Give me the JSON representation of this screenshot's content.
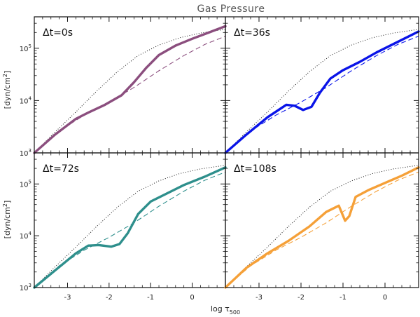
{
  "chart_data": {
    "type": "line",
    "title": "Gas Pressure",
    "xlabel": "log τ",
    "xlabel_sub": "500",
    "ylabel": "[dyn/cm",
    "ylabel_sup": "2",
    "ylabel_end": "]",
    "xlim": [
      -3.8,
      0.8
    ],
    "ylim_log10": [
      3,
      5.6
    ],
    "x_ticks": [
      -3,
      -2,
      -1,
      0
    ],
    "x_tick_labels": [
      "-3",
      "-2",
      "-1",
      "0"
    ],
    "y_ticks_log10": [
      3,
      4,
      5
    ],
    "y_tick_labels": [
      {
        "base": "10",
        "exp": "3"
      },
      {
        "base": "10",
        "exp": "4"
      },
      {
        "base": "10",
        "exp": "5"
      }
    ],
    "reference_series": {
      "dotted": {
        "name": "dotted reference",
        "x": [
          -3.8,
          -3.3,
          -2.8,
          -2.3,
          -1.8,
          -1.3,
          -0.8,
          -0.3,
          0.2,
          0.8
        ],
        "log10_p": [
          3.0,
          3.4,
          3.78,
          4.18,
          4.55,
          4.86,
          5.06,
          5.2,
          5.29,
          5.36
        ]
      },
      "dashed": {
        "name": "dashed reference",
        "x": [
          -3.8,
          -3.2,
          -2.6,
          -2.0,
          -1.4,
          -0.8,
          -0.2,
          0.3,
          0.8
        ],
        "log10_p": [
          3.0,
          3.42,
          3.72,
          3.97,
          4.25,
          4.57,
          4.86,
          5.07,
          5.23
        ]
      }
    },
    "panels": [
      {
        "label": "Δt=0s",
        "color": "#8b4e7e",
        "x": [
          -3.8,
          -3.3,
          -2.8,
          -2.5,
          -2.1,
          -1.7,
          -1.4,
          -1.1,
          -0.8,
          -0.4,
          0.0,
          0.4,
          0.8
        ],
        "log10_p": [
          3.0,
          3.35,
          3.65,
          3.77,
          3.92,
          4.1,
          4.35,
          4.63,
          4.87,
          5.05,
          5.18,
          5.3,
          5.42
        ]
      },
      {
        "label": "Δt=36s",
        "color": "#0a14e8",
        "x": [
          -3.8,
          -3.3,
          -2.8,
          -2.35,
          -2.15,
          -1.95,
          -1.75,
          -1.55,
          -1.3,
          -1.0,
          -0.6,
          -0.2,
          0.3,
          0.8
        ],
        "log10_p": [
          3.0,
          3.35,
          3.68,
          3.92,
          3.9,
          3.82,
          3.88,
          4.15,
          4.42,
          4.58,
          4.74,
          4.92,
          5.12,
          5.32
        ]
      },
      {
        "label": "Δt=72s",
        "color": "#2e8f8c",
        "x": [
          -3.8,
          -3.3,
          -2.8,
          -2.5,
          -2.25,
          -1.95,
          -1.75,
          -1.55,
          -1.3,
          -1.0,
          -0.6,
          -0.2,
          0.3,
          0.8
        ],
        "log10_p": [
          3.0,
          3.33,
          3.66,
          3.81,
          3.82,
          3.79,
          3.84,
          4.05,
          4.42,
          4.66,
          4.82,
          4.98,
          5.14,
          5.32
        ]
      },
      {
        "label": "Δt=108s",
        "color": "#f5a038",
        "x": [
          -3.8,
          -3.3,
          -2.8,
          -2.3,
          -1.8,
          -1.4,
          -1.1,
          -0.95,
          -0.85,
          -0.7,
          -0.4,
          0.0,
          0.4,
          0.8
        ],
        "log10_p": [
          3.0,
          3.38,
          3.66,
          3.9,
          4.18,
          4.46,
          4.58,
          4.29,
          4.38,
          4.75,
          4.88,
          5.02,
          5.16,
          5.32
        ]
      }
    ]
  }
}
